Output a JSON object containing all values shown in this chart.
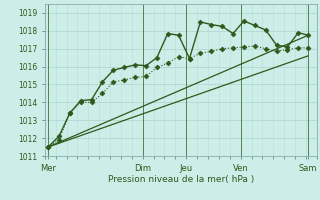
{
  "bg_color": "#cceee8",
  "grid_major_color": "#aad4cc",
  "grid_minor_color": "#bbddd8",
  "line_color": "#2d5a1b",
  "xlabel": "Pression niveau de la mer( hPa )",
  "ylim": [
    1011,
    1019.5
  ],
  "xlim": [
    0,
    25
  ],
  "yticks": [
    1011,
    1012,
    1013,
    1014,
    1015,
    1016,
    1017,
    1018,
    1019
  ],
  "day_labels": [
    "Mer",
    "Dim",
    "Jeu",
    "Ven",
    "Sam"
  ],
  "day_positions": [
    0.3,
    9,
    13,
    18,
    24.2
  ],
  "vline_positions": [
    0.3,
    9,
    13,
    18,
    24.2
  ],
  "series": [
    {
      "x": [
        0.3,
        1.3,
        2.3,
        3.3,
        4.3,
        5.3,
        6.3,
        7.3,
        8.3,
        9.3,
        10.3,
        11.3,
        12.3,
        13.3,
        14.3,
        15.3,
        16.3,
        17.3,
        18.3,
        19.3,
        20.3,
        21.3,
        22.3,
        23.3,
        24.2
      ],
      "y": [
        1011.5,
        1012.1,
        1013.4,
        1014.1,
        1014.15,
        1015.15,
        1015.8,
        1015.95,
        1016.1,
        1016.05,
        1016.5,
        1017.85,
        1017.75,
        1016.45,
        1018.5,
        1018.35,
        1018.25,
        1017.85,
        1018.55,
        1018.3,
        1018.05,
        1017.2,
        1017.1,
        1017.9,
        1017.75
      ],
      "marker": "D",
      "markersize": 2.5,
      "linewidth": 1.0,
      "linestyle": "-",
      "zorder": 4
    },
    {
      "x": [
        0.3,
        1.3,
        2.3,
        3.3,
        4.3,
        5.3,
        6.3,
        7.3,
        8.3,
        9.3,
        10.3,
        11.3,
        12.3,
        13.3,
        14.3,
        15.3,
        16.3,
        17.3,
        18.3,
        19.3,
        20.3,
        21.3,
        22.3,
        23.3,
        24.2
      ],
      "y": [
        1011.5,
        1011.9,
        1013.4,
        1014.0,
        1014.0,
        1014.5,
        1015.15,
        1015.25,
        1015.4,
        1015.45,
        1015.95,
        1016.2,
        1016.55,
        1016.45,
        1016.75,
        1016.85,
        1017.0,
        1017.05,
        1017.1,
        1017.15,
        1017.0,
        1016.85,
        1016.95,
        1017.05,
        1017.05
      ],
      "marker": "D",
      "markersize": 2.5,
      "linewidth": 0.8,
      "linestyle": ":",
      "zorder": 3
    },
    {
      "x": [
        0.3,
        24.2
      ],
      "y": [
        1011.5,
        1017.75
      ],
      "marker": null,
      "markersize": 0,
      "linewidth": 0.9,
      "linestyle": "-",
      "zorder": 2
    },
    {
      "x": [
        0.3,
        24.2
      ],
      "y": [
        1011.5,
        1016.6
      ],
      "marker": null,
      "markersize": 0,
      "linewidth": 0.9,
      "linestyle": "-",
      "zorder": 2
    }
  ]
}
